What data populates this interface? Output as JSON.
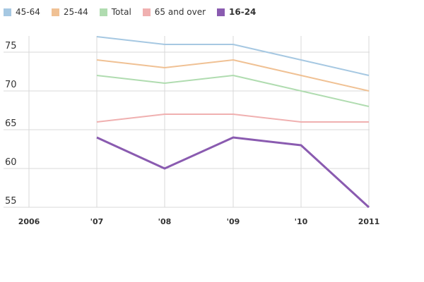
{
  "chart_data": {
    "type": "line",
    "title": "",
    "xlabel": "",
    "ylabel": "",
    "categories": [
      "2006",
      "'07",
      "'08",
      "'09",
      "'10",
      "2011"
    ],
    "x": [
      2006,
      2007,
      2008,
      2009,
      2010,
      2011
    ],
    "ylim": [
      55,
      77
    ],
    "yticks": [
      75,
      70,
      65,
      60,
      55
    ],
    "grid": true,
    "legend_position": "top-left",
    "series": [
      {
        "name": "45-64",
        "color": "#a6c8e2",
        "x": [
          2007,
          2008,
          2009,
          2010,
          2011
        ],
        "values": [
          77,
          76,
          76,
          74,
          72
        ]
      },
      {
        "name": "25-44",
        "color": "#f0c194",
        "x": [
          2007,
          2008,
          2009,
          2010,
          2011
        ],
        "values": [
          74,
          73,
          74,
          72,
          70
        ]
      },
      {
        "name": "Total",
        "color": "#b0dcb0",
        "x": [
          2007,
          2008,
          2009,
          2010,
          2011
        ],
        "values": [
          72,
          71,
          72,
          70,
          68
        ]
      },
      {
        "name": "65 and over",
        "color": "#f0b0b0",
        "x": [
          2007,
          2008,
          2009,
          2010,
          2011
        ],
        "values": [
          66,
          67,
          67,
          66,
          66
        ]
      },
      {
        "name": "16-24",
        "color": "#8a5bb0",
        "x": [
          2007,
          2008,
          2009,
          2010,
          2011
        ],
        "values": [
          64,
          60,
          64,
          63,
          55
        ],
        "highlighted": true
      }
    ]
  },
  "legend": [
    {
      "label": "45-64",
      "color": "#a6c8e2"
    },
    {
      "label": "25-44",
      "color": "#f0c194"
    },
    {
      "label": "Total",
      "color": "#b0dcb0"
    },
    {
      "label": "65 and over",
      "color": "#f0b0b0"
    },
    {
      "label": "16-24",
      "color": "#8a5bb0"
    }
  ],
  "axis": {
    "y_labels": [
      "75",
      "70",
      "65",
      "60",
      "55"
    ],
    "x_labels": [
      "2006",
      "'07",
      "'08",
      "'09",
      "'10",
      "2011"
    ]
  }
}
